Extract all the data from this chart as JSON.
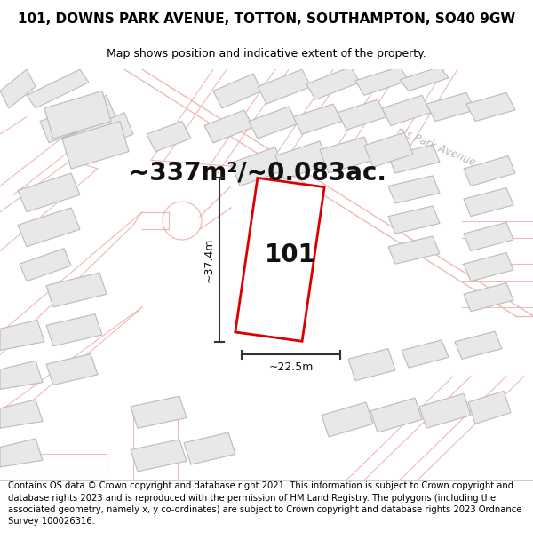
{
  "title": "101, DOWNS PARK AVENUE, TOTTON, SOUTHAMPTON, SO40 9GW",
  "subtitle": "Map shows position and indicative extent of the property.",
  "area_text": "~337m²/~0.083ac.",
  "dim_width": "~22.5m",
  "dim_height": "~37.4m",
  "label": "101",
  "footer": "Contains OS data © Crown copyright and database right 2021. This information is subject to Crown copyright and database rights 2023 and is reproduced with the permission of HM Land Registry. The polygons (including the associated geometry, namely x, y co-ordinates) are subject to Crown copyright and database rights 2023 Ordnance Survey 100026316.",
  "bg_color": "#ffffff",
  "map_bg": "#ffffff",
  "bld_fill": "#e8e8e8",
  "bld_edge": "#bbbbbb",
  "road_color": "#f0b8b8",
  "highlight_color": "#dd0000",
  "street_label_color": "#bbbbbb",
  "title_fontsize": 11,
  "subtitle_fontsize": 9,
  "area_fontsize": 20,
  "label_fontsize": 20,
  "footer_fontsize": 7.2
}
